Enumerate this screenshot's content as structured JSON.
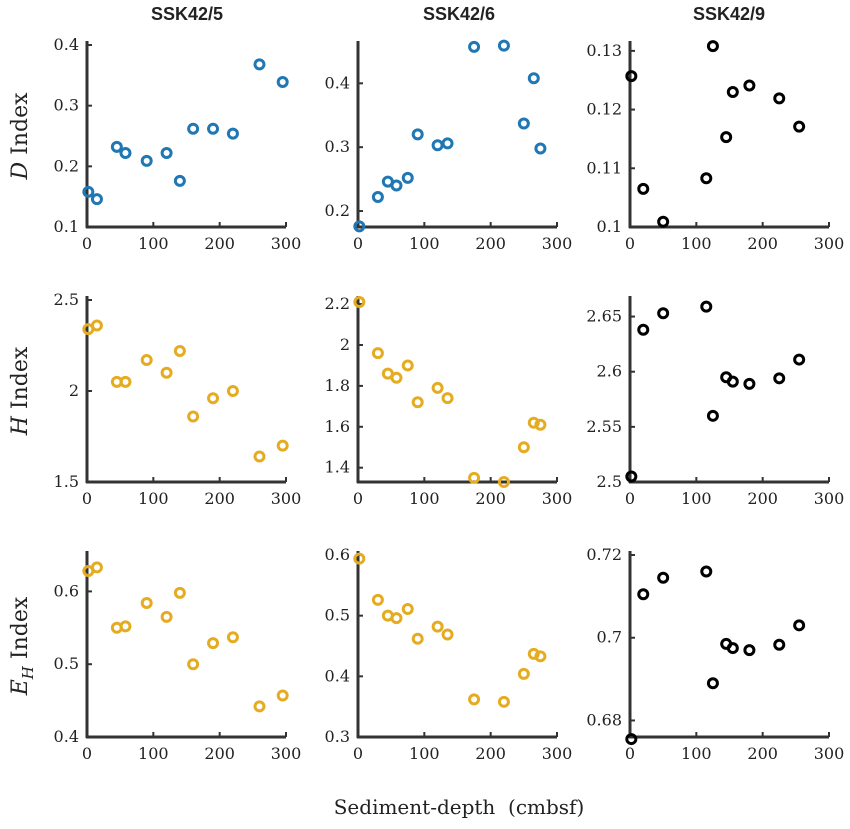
{
  "figure": {
    "column_titles": [
      "SSK42/5",
      "SSK42/6",
      "SSK42/9"
    ],
    "row_labels": [
      {
        "italic": "D",
        "rest": " Index"
      },
      {
        "italic": "H",
        "rest": " Index"
      },
      {
        "italic": "E",
        "sub": "H",
        "rest": " Index"
      }
    ],
    "xlabel": "Sediment-depth  (cmbsf)"
  },
  "colors": {
    "blue": "#1f77b4",
    "yellow": "#e6ac21",
    "black": "#000000"
  },
  "chart_data": [
    {
      "type": "scatter",
      "row": 0,
      "col": 0,
      "color": "#1f77b4",
      "xlim": [
        0,
        300
      ],
      "ylim": [
        0.1,
        0.4
      ],
      "xticks": [
        0,
        100,
        200,
        300
      ],
      "yticks": [
        0.1,
        0.2,
        0.3,
        0.4
      ],
      "ytick_labels": [
        "0.1",
        "0.2",
        "0.3",
        "0.4"
      ],
      "x": [
        2,
        15,
        45,
        58,
        90,
        120,
        140,
        160,
        190,
        220,
        260,
        295
      ],
      "y": [
        0.158,
        0.146,
        0.232,
        0.222,
        0.209,
        0.222,
        0.176,
        0.262,
        0.262,
        0.254,
        0.368,
        0.339
      ]
    },
    {
      "type": "scatter",
      "row": 0,
      "col": 1,
      "color": "#1f77b4",
      "xlim": [
        0,
        300
      ],
      "ylim": [
        0.175,
        0.46
      ],
      "xticks": [
        0,
        100,
        200,
        300
      ],
      "yticks": [
        0.2,
        0.3,
        0.4
      ],
      "ytick_labels": [
        "0.2",
        "0.3",
        "0.4"
      ],
      "x": [
        2,
        30,
        45,
        58,
        75,
        90,
        120,
        135,
        175,
        220,
        250,
        265,
        275
      ],
      "y": [
        0.176,
        0.222,
        0.246,
        0.24,
        0.252,
        0.32,
        0.303,
        0.306,
        0.457,
        0.459,
        0.337,
        0.408,
        0.298
      ]
    },
    {
      "type": "scatter",
      "row": 0,
      "col": 2,
      "color": "#000000",
      "xlim": [
        0,
        300
      ],
      "ylim": [
        0.1,
        0.131
      ],
      "xticks": [
        0,
        100,
        200,
        300
      ],
      "yticks": [
        0.1,
        0.11,
        0.12,
        0.13
      ],
      "ytick_labels": [
        "0.1",
        "0.11",
        "0.12",
        "0.13"
      ],
      "x": [
        2,
        20,
        50,
        115,
        125,
        145,
        155,
        180,
        225,
        255
      ],
      "y": [
        0.1257,
        0.1065,
        0.1009,
        0.1083,
        0.1308,
        0.1153,
        0.123,
        0.1241,
        0.1219,
        0.1171
      ]
    },
    {
      "type": "scatter",
      "row": 1,
      "col": 0,
      "color": "#e6ac21",
      "xlim": [
        0,
        300
      ],
      "ylim": [
        1.5,
        2.5
      ],
      "xticks": [
        0,
        100,
        200,
        300
      ],
      "yticks": [
        1.5,
        2,
        2.5
      ],
      "ytick_labels": [
        "1.5",
        "2",
        "2.5"
      ],
      "x": [
        2,
        15,
        45,
        58,
        90,
        120,
        140,
        160,
        190,
        220,
        260,
        295
      ],
      "y": [
        2.34,
        2.36,
        2.05,
        2.05,
        2.17,
        2.1,
        2.22,
        1.86,
        1.96,
        2.0,
        1.64,
        1.7
      ]
    },
    {
      "type": "scatter",
      "row": 1,
      "col": 1,
      "color": "#e6ac21",
      "xlim": [
        0,
        300
      ],
      "ylim": [
        1.33,
        2.22
      ],
      "xticks": [
        0,
        100,
        200,
        300
      ],
      "yticks": [
        1.4,
        1.6,
        1.8,
        2.0,
        2.2
      ],
      "ytick_labels": [
        "1.4",
        "1.6",
        "1.8",
        "2",
        "2.2"
      ],
      "x": [
        2,
        30,
        45,
        58,
        75,
        90,
        120,
        135,
        175,
        220,
        250,
        265,
        275
      ],
      "y": [
        2.21,
        1.96,
        1.86,
        1.84,
        1.9,
        1.72,
        1.79,
        1.74,
        1.35,
        1.33,
        1.5,
        1.62,
        1.61
      ]
    },
    {
      "type": "scatter",
      "row": 1,
      "col": 2,
      "color": "#000000",
      "xlim": [
        0,
        300
      ],
      "ylim": [
        2.5,
        2.665
      ],
      "xticks": [
        0,
        100,
        200,
        300
      ],
      "yticks": [
        2.5,
        2.55,
        2.6,
        2.65
      ],
      "ytick_labels": [
        "2.5",
        "2.55",
        "2.6",
        "2.65"
      ],
      "x": [
        2,
        20,
        50,
        115,
        125,
        145,
        155,
        180,
        225,
        255
      ],
      "y": [
        2.505,
        2.638,
        2.653,
        2.659,
        2.56,
        2.595,
        2.591,
        2.589,
        2.594,
        2.611
      ]
    },
    {
      "type": "scatter",
      "row": 2,
      "col": 0,
      "color": "#e6ac21",
      "xlim": [
        0,
        300
      ],
      "ylim": [
        0.4,
        0.65
      ],
      "xticks": [
        0,
        100,
        200,
        300
      ],
      "yticks": [
        0.4,
        0.5,
        0.6
      ],
      "ytick_labels": [
        "0.4",
        "0.5",
        "0.6"
      ],
      "x": [
        2,
        15,
        45,
        58,
        90,
        120,
        140,
        160,
        190,
        220,
        260,
        295
      ],
      "y": [
        0.628,
        0.633,
        0.55,
        0.552,
        0.584,
        0.565,
        0.598,
        0.5,
        0.529,
        0.537,
        0.442,
        0.457
      ]
    },
    {
      "type": "scatter",
      "row": 2,
      "col": 1,
      "color": "#e6ac21",
      "xlim": [
        0,
        300
      ],
      "ylim": [
        0.3,
        0.6
      ],
      "xticks": [
        0,
        100,
        200,
        300
      ],
      "yticks": [
        0.3,
        0.4,
        0.5,
        0.6
      ],
      "ytick_labels": [
        "0.3",
        "0.4",
        "0.5",
        "0.6"
      ],
      "x": [
        2,
        30,
        45,
        58,
        75,
        90,
        120,
        135,
        175,
        220,
        250,
        265,
        275
      ],
      "y": [
        0.594,
        0.526,
        0.5,
        0.496,
        0.511,
        0.462,
        0.482,
        0.469,
        0.362,
        0.358,
        0.404,
        0.437,
        0.433
      ]
    },
    {
      "type": "scatter",
      "row": 2,
      "col": 2,
      "color": "#000000",
      "xlim": [
        0,
        300
      ],
      "ylim": [
        0.676,
        0.72
      ],
      "xticks": [
        0,
        100,
        200,
        300
      ],
      "yticks": [
        0.68,
        0.7,
        0.72
      ],
      "ytick_labels": [
        "0.68",
        "0.7",
        "0.72"
      ],
      "x": [
        2,
        20,
        50,
        115,
        125,
        145,
        155,
        180,
        225,
        255
      ],
      "y": [
        0.6755,
        0.7105,
        0.7145,
        0.716,
        0.689,
        0.6985,
        0.6975,
        0.697,
        0.6983,
        0.703
      ]
    }
  ]
}
